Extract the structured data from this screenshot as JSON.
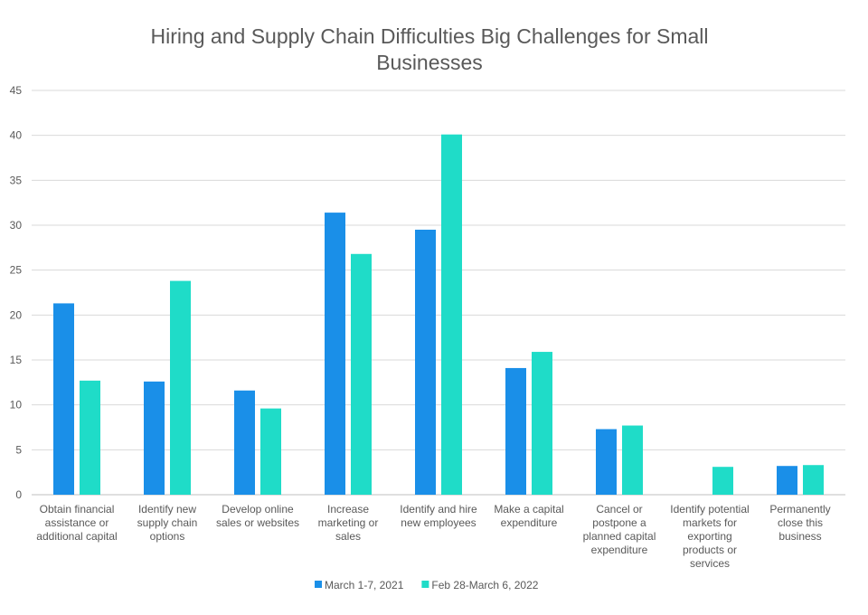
{
  "chart_data": {
    "type": "bar",
    "title_lines": [
      "Hiring and Supply Chain Difficulties Big Challenges for Small",
      "Businesses"
    ],
    "xlabel": "",
    "ylabel": "",
    "ylim": [
      0,
      45
    ],
    "yticks": [
      0,
      5,
      10,
      15,
      20,
      25,
      30,
      35,
      40,
      45
    ],
    "grid": true,
    "legend_position": "bottom",
    "categories": [
      [
        "Obtain financial",
        "assistance or",
        "additional capital"
      ],
      [
        "Identify new",
        "supply chain",
        "options"
      ],
      [
        "Develop online",
        "sales or websites"
      ],
      [
        "Increase",
        "marketing or",
        "sales"
      ],
      [
        "Identify and hire",
        "new employees"
      ],
      [
        "Make a capital",
        "expenditure"
      ],
      [
        "Cancel or",
        "postpone a",
        "planned capital",
        "expenditure"
      ],
      [
        "Identify potential",
        "markets for",
        "exporting",
        "products or",
        "services"
      ],
      [
        "Permanently",
        "close this",
        "business"
      ]
    ],
    "series": [
      {
        "name": "March 1-7, 2021",
        "color": "#1a8fe8",
        "values": [
          21.3,
          12.6,
          11.6,
          31.4,
          29.5,
          14.1,
          7.3,
          null,
          3.2
        ]
      },
      {
        "name": "Feb 28-March 6, 2022",
        "color": "#1fdcc8",
        "values": [
          12.7,
          23.8,
          9.6,
          26.8,
          40.1,
          15.9,
          7.7,
          3.1,
          3.3
        ]
      }
    ]
  }
}
